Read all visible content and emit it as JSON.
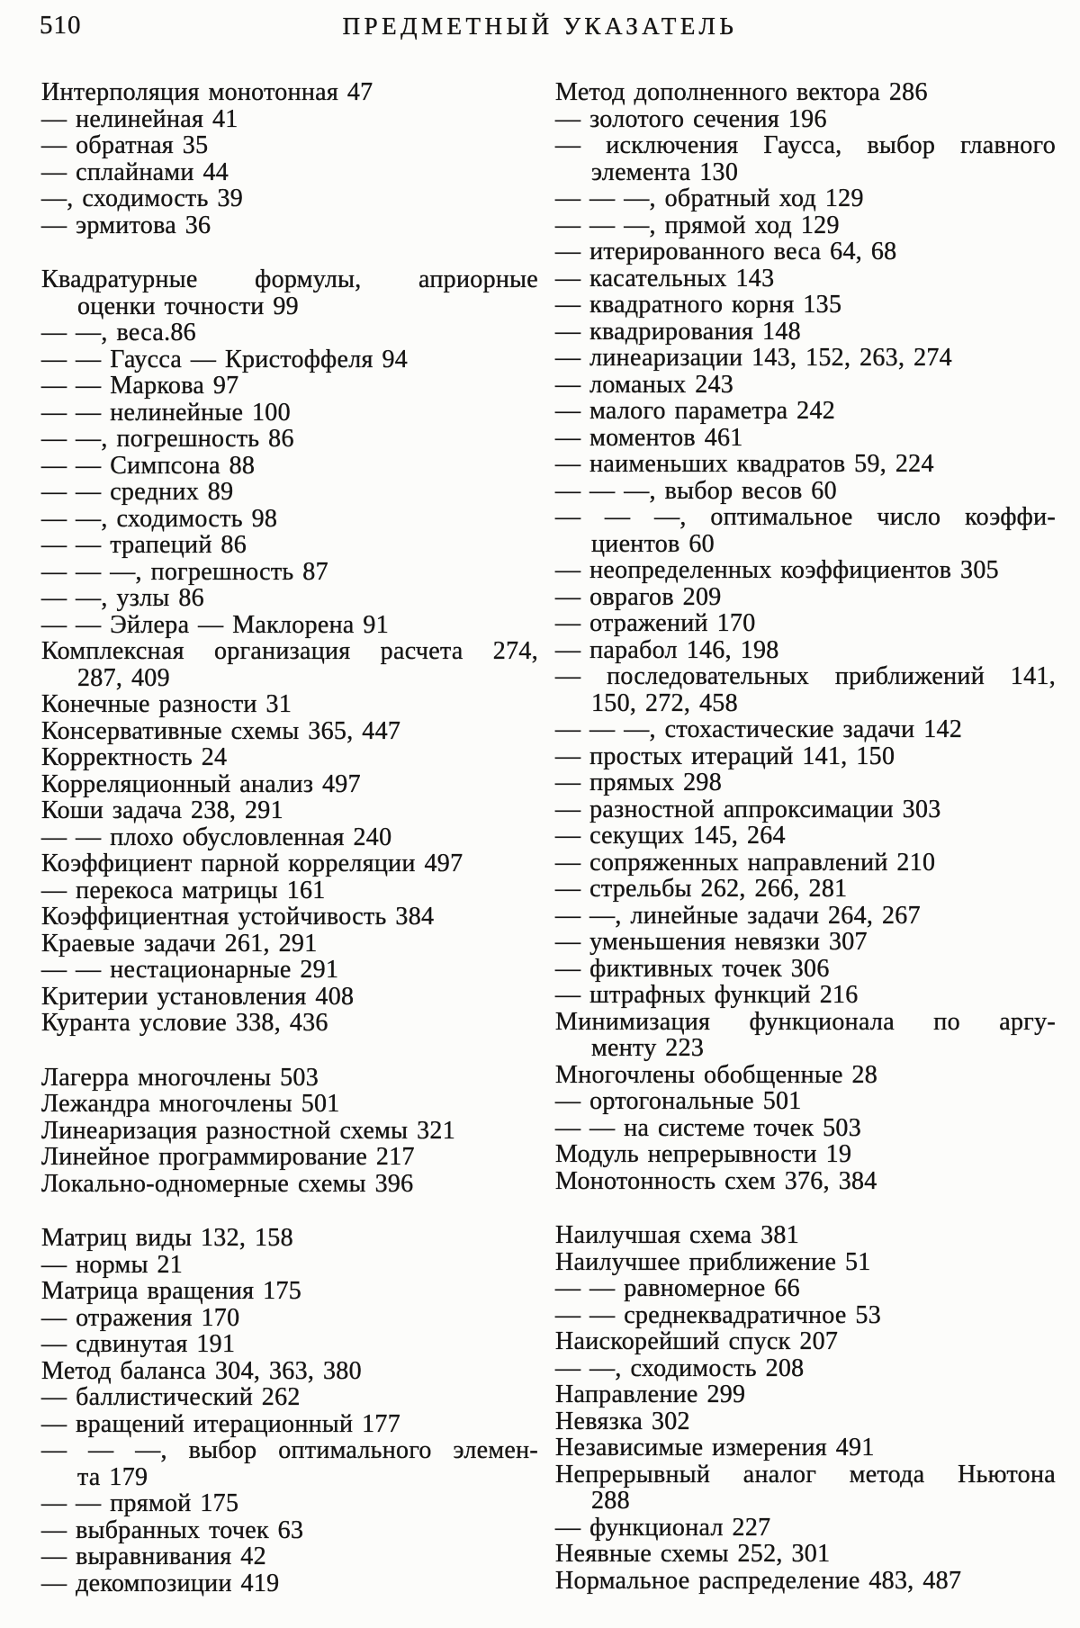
{
  "page": {
    "number": "510",
    "title": "ПРЕДМЕТНЫЙ УКАЗАТЕЛЬ"
  },
  "index": {
    "left_column_lines": [
      {
        "t": "Интерполяция монотонная 47"
      },
      {
        "t": "— нелинейная 41"
      },
      {
        "t": "— обратная 35"
      },
      {
        "t": "— сплайнами 44"
      },
      {
        "t": "—, сходимость 39"
      },
      {
        "t": "— эрмитова 36"
      },
      {
        "gap": true
      },
      {
        "t": "Квадратурные формулы, априорные",
        "j": true
      },
      {
        "t": "оценки точности 99",
        "i": 1
      },
      {
        "t": "— —, веса.86"
      },
      {
        "t": "— — Гаусса — Кристоффеля 94"
      },
      {
        "t": "— — Маркова 97"
      },
      {
        "t": "— — нелинейные 100"
      },
      {
        "t": "— —, погрешность 86"
      },
      {
        "t": "— — Симпсона 88"
      },
      {
        "t": "— — средних 89"
      },
      {
        "t": "— —, сходимость 98"
      },
      {
        "t": "— — трапеций 86"
      },
      {
        "t": "— — —, погрешность 87"
      },
      {
        "t": "— —, узлы 86"
      },
      {
        "t": "— — Эйлера — Маклорена 91"
      },
      {
        "t": "Комплексная организация расчета 274,",
        "j": true
      },
      {
        "t": "287, 409",
        "i": 1
      },
      {
        "t": "Конечные разности 31"
      },
      {
        "t": "Консервативные схемы 365, 447"
      },
      {
        "t": "Корректность 24"
      },
      {
        "t": "Корреляционный анализ 497"
      },
      {
        "t": "Коши задача 238, 291"
      },
      {
        "t": "— — плохо обусловленная 240"
      },
      {
        "t": "Коэффициент парной корреляции 497"
      },
      {
        "t": "— перекоса матрицы 161"
      },
      {
        "t": "Коэффициентная устойчивость 384"
      },
      {
        "t": "Краевые задачи 261, 291"
      },
      {
        "t": "— — нестационарные 291"
      },
      {
        "t": "Критерии установления 408"
      },
      {
        "t": "Куранта условие 338, 436"
      },
      {
        "gap": true
      },
      {
        "t": "Лагерра многочлены 503"
      },
      {
        "t": "Лежандра многочлены 501"
      },
      {
        "t": "Линеаризация разностной схемы 321"
      },
      {
        "t": "Линейное программирование 217"
      },
      {
        "t": "Локально-одномерные схемы 396"
      },
      {
        "gap": true
      },
      {
        "t": "Матриц виды 132, 158"
      },
      {
        "t": "— нормы 21"
      },
      {
        "t": "Матрица вращения 175"
      },
      {
        "t": "— отражения 170"
      },
      {
        "t": "— сдвинутая 191"
      },
      {
        "t": "Метод баланса 304, 363, 380"
      },
      {
        "t": "— баллистический 262"
      },
      {
        "t": "— вращений итерационный 177"
      },
      {
        "t": "— — —, выбор оптимального элемен-",
        "j": true
      },
      {
        "t": "та 179",
        "i": 1
      },
      {
        "t": "— — прямой 175"
      },
      {
        "t": "— выбранных точек 63"
      },
      {
        "t": "— выравнивания 42"
      },
      {
        "t": "— декомпозиции 419"
      }
    ],
    "right_column_lines": [
      {
        "t": "Метод дополненного вектора 286"
      },
      {
        "t": "— золотого сечения 196"
      },
      {
        "t": "— исключения Гаусса, выбор главного",
        "j": true
      },
      {
        "t": "элемента 130",
        "i": 1
      },
      {
        "t": "— — —, обратный ход 129"
      },
      {
        "t": "— — —, прямой ход 129"
      },
      {
        "t": "— итерированного веса 64, 68"
      },
      {
        "t": "— касательных 143"
      },
      {
        "t": "— квадратного корня 135"
      },
      {
        "t": "— квадрирования 148"
      },
      {
        "t": "— линеаризации 143, 152, 263, 274"
      },
      {
        "t": "— ломаных 243"
      },
      {
        "t": "— малого параметра 242"
      },
      {
        "t": "— моментов 461"
      },
      {
        "t": "— наименьших квадратов 59, 224"
      },
      {
        "t": "— — —, выбор весов 60"
      },
      {
        "t": "— — —, оптимальное число коэффи-",
        "j": true
      },
      {
        "t": "циентов 60",
        "i": 1
      },
      {
        "t": "— неопределенных коэффициентов 305"
      },
      {
        "t": "— оврагов 209"
      },
      {
        "t": "— отражений 170"
      },
      {
        "t": "— парабол 146, 198"
      },
      {
        "t": "— последовательных приближений 141,",
        "j": true
      },
      {
        "t": "150, 272, 458",
        "i": 1
      },
      {
        "t": "— — —, стохастические задачи 142"
      },
      {
        "t": "— простых итераций 141, 150"
      },
      {
        "t": "— прямых 298"
      },
      {
        "t": "— разностной аппроксимации 303"
      },
      {
        "t": "— секущих 145, 264"
      },
      {
        "t": "— сопряженных направлений 210"
      },
      {
        "t": "— стрельбы 262, 266, 281"
      },
      {
        "t": "— —, линейные задачи 264, 267"
      },
      {
        "t": "— уменьшения невязки 307"
      },
      {
        "t": "— фиктивных точек 306"
      },
      {
        "t": "— штрафных функций 216"
      },
      {
        "t": "Минимизация функционала по аргу-",
        "j": true
      },
      {
        "t": "менту 223",
        "i": 1
      },
      {
        "t": "Многочлены обобщенные 28"
      },
      {
        "t": "— ортогональные 501"
      },
      {
        "t": "— — на системе точек 503"
      },
      {
        "t": "Модуль непрерывности 19"
      },
      {
        "t": "Монотонность схем 376, 384"
      },
      {
        "gap": true
      },
      {
        "t": "Наилучшая схема 381"
      },
      {
        "t": "Наилучшее приближение 51"
      },
      {
        "t": "— — равномерное 66"
      },
      {
        "t": "— — среднеквадратичное 53"
      },
      {
        "t": "Наискорейший спуск 207"
      },
      {
        "t": "— —, сходимость 208"
      },
      {
        "t": "Направление 299"
      },
      {
        "t": "Невязка 302"
      },
      {
        "t": "Независимые измерения 491"
      },
      {
        "t": "Непрерывный аналог метода Ньютона",
        "j": true
      },
      {
        "t": "288",
        "i": 1
      },
      {
        "t": "— функционал 227"
      },
      {
        "t": "Неявные схемы 252, 301"
      },
      {
        "t": "Нормальное распределение 483, 487"
      }
    ]
  }
}
